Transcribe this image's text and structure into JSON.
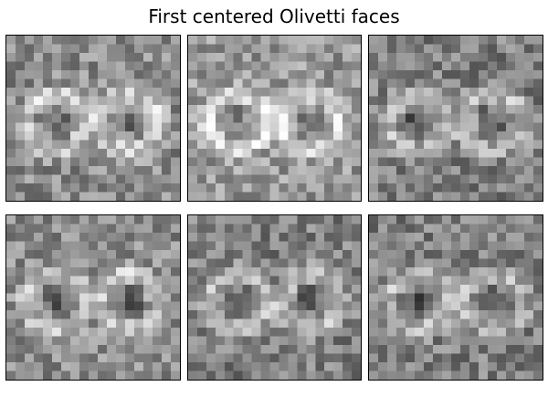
{
  "figure": {
    "title": "First centered Olivetti faces",
    "colormap": "gray",
    "grid_rows": 2,
    "grid_cols": 3,
    "image_resolution": [
      19,
      19
    ]
  },
  "faces": [
    {
      "label": "",
      "shade": "0.55"
    },
    {
      "label": "",
      "shade": "0.6"
    },
    {
      "label": "",
      "shade": "0.5"
    },
    {
      "label": "",
      "shade": "0.55"
    },
    {
      "label": "",
      "shade": "0.5"
    },
    {
      "label": "",
      "shade": "0.5"
    }
  ]
}
